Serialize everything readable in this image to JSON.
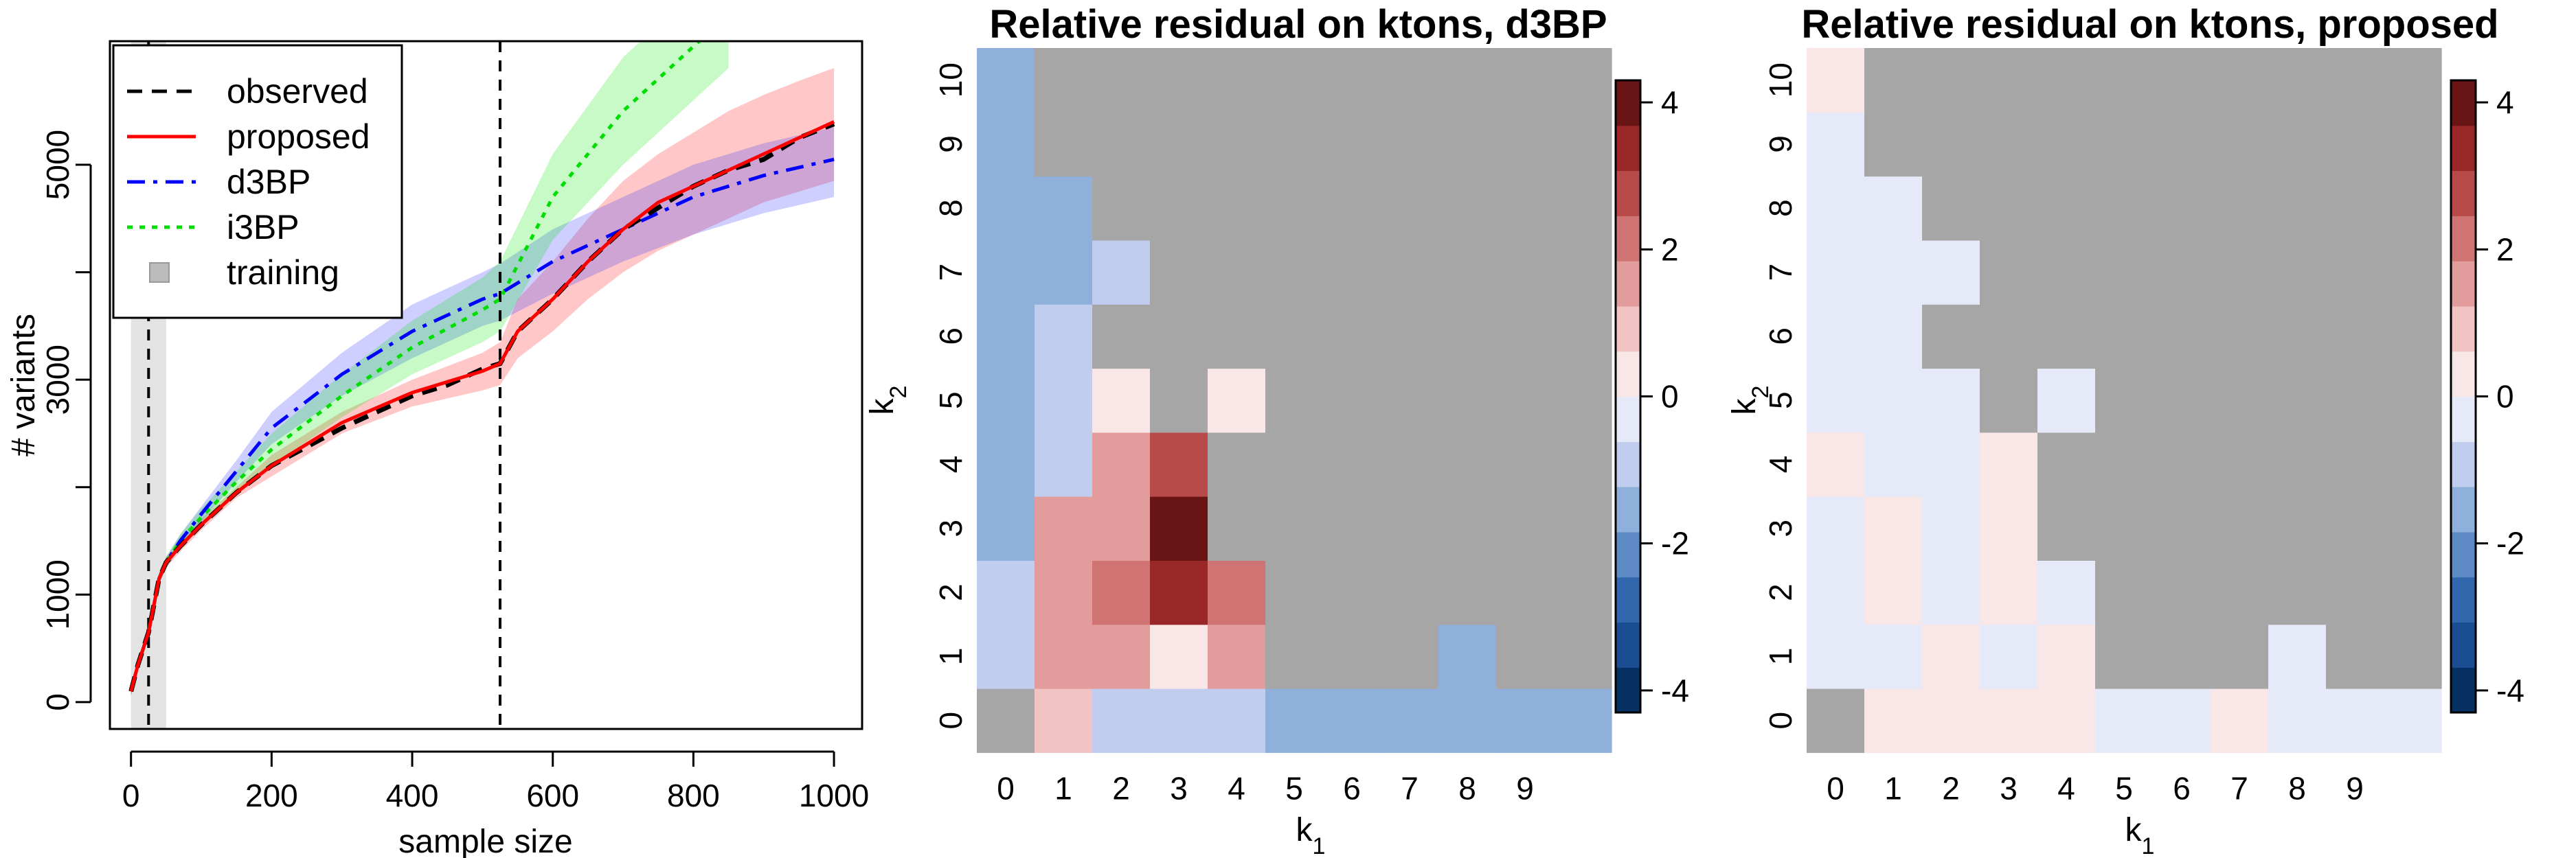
{
  "chart_data": [
    {
      "type": "line",
      "xlabel": "sample size",
      "ylabel": "# variants",
      "xlim": [
        -30,
        1040
      ],
      "ylim": [
        -250,
        6150
      ],
      "x_ticks": [
        "0",
        "200",
        "400",
        "600",
        "800",
        "1000"
      ],
      "x_tick_values": [
        0,
        200,
        400,
        600,
        800,
        1000
      ],
      "y_ticks": [
        "0",
        "1000",
        "3000",
        "5000"
      ],
      "y_tick_values": [
        0,
        1000,
        3000,
        5000
      ],
      "vertical_lines": [
        25,
        525
      ],
      "training_band": [
        0,
        50
      ],
      "legend": {
        "position": "top-left",
        "items": [
          {
            "label": "observed",
            "color": "#000000",
            "style": "dashed"
          },
          {
            "label": "proposed",
            "color": "#ff0000",
            "style": "solid"
          },
          {
            "label": "d3BP",
            "color": "#0000ff",
            "style": "dashdot"
          },
          {
            "label": "i3BP",
            "color": "#00dd00",
            "style": "dotted"
          },
          {
            "label": "training",
            "color": "#bbbbbb",
            "style": "box"
          }
        ]
      },
      "series": [
        {
          "name": "observed",
          "color": "#000000",
          "style": "dashed",
          "x": [
            0,
            10,
            25,
            40,
            50,
            70,
            100,
            150,
            200,
            300,
            400,
            450,
            500,
            525,
            550,
            600,
            650,
            700,
            750,
            800,
            850,
            900,
            950,
            1000
          ],
          "y": [
            100,
            350,
            650,
            1150,
            1300,
            1450,
            1650,
            1950,
            2200,
            2550,
            2850,
            2950,
            3100,
            3150,
            3450,
            3750,
            4100,
            4400,
            4600,
            4800,
            4950,
            5050,
            5250,
            5380
          ]
        },
        {
          "name": "proposed",
          "color": "#ff0000",
          "style": "solid",
          "x": [
            0,
            10,
            25,
            40,
            50,
            70,
            100,
            150,
            200,
            300,
            400,
            500,
            525,
            550,
            600,
            650,
            700,
            750,
            800,
            850,
            900,
            950,
            1000
          ],
          "y": [
            100,
            350,
            650,
            1150,
            1300,
            1450,
            1650,
            1950,
            2200,
            2600,
            2880,
            3080,
            3150,
            3450,
            3750,
            4100,
            4400,
            4650,
            4800,
            4950,
            5100,
            5250,
            5400
          ],
          "band_upper": [
            150,
            400,
            700,
            1200,
            1350,
            1500,
            1700,
            2000,
            2300,
            2700,
            3000,
            3250,
            3350,
            3750,
            4100,
            4500,
            4850,
            5100,
            5300,
            5500,
            5650,
            5780,
            5900
          ],
          "band_lower": [
            60,
            300,
            600,
            1100,
            1250,
            1400,
            1600,
            1900,
            2100,
            2500,
            2750,
            2900,
            2950,
            3200,
            3450,
            3750,
            4000,
            4200,
            4350,
            4500,
            4650,
            4750,
            4850
          ]
        },
        {
          "name": "d3BP",
          "color": "#0000ff",
          "style": "dashdot",
          "x": [
            0,
            10,
            25,
            40,
            50,
            70,
            100,
            150,
            200,
            300,
            400,
            500,
            525,
            600,
            700,
            800,
            900,
            1000
          ],
          "y": [
            100,
            350,
            650,
            1150,
            1300,
            1500,
            1750,
            2150,
            2550,
            3050,
            3450,
            3750,
            3800,
            4100,
            4400,
            4700,
            4900,
            5050
          ],
          "band_upper": [
            150,
            400,
            700,
            1200,
            1350,
            1560,
            1820,
            2250,
            2700,
            3250,
            3700,
            4000,
            4080,
            4400,
            4700,
            5000,
            5200,
            5350
          ],
          "band_lower": [
            60,
            300,
            600,
            1100,
            1250,
            1440,
            1680,
            2050,
            2400,
            2850,
            3200,
            3500,
            3550,
            3800,
            4100,
            4350,
            4550,
            4700
          ]
        },
        {
          "name": "i3BP",
          "color": "#00dd00",
          "style": "dotted",
          "x": [
            0,
            10,
            25,
            40,
            50,
            70,
            100,
            150,
            200,
            300,
            400,
            500,
            525,
            600,
            700,
            800,
            850
          ],
          "y": [
            100,
            350,
            650,
            1150,
            1300,
            1500,
            1720,
            2050,
            2350,
            2850,
            3300,
            3650,
            3750,
            4700,
            5500,
            6100,
            6400
          ],
          "band_upper": [
            150,
            400,
            700,
            1200,
            1350,
            1560,
            1800,
            2150,
            2500,
            3050,
            3550,
            3950,
            4100,
            5100,
            6000,
            6600,
            6900
          ],
          "band_lower": [
            60,
            300,
            600,
            1100,
            1250,
            1440,
            1650,
            1950,
            2200,
            2650,
            3050,
            3350,
            3450,
            4300,
            5000,
            5600,
            5900
          ]
        }
      ]
    },
    {
      "type": "heatmap",
      "title": "Relative residual on ktons, d3BP",
      "xlabel": "k1",
      "ylabel": "k2",
      "x_ticks": [
        "0",
        "1",
        "2",
        "3",
        "4",
        "5",
        "6",
        "7",
        "8",
        "9"
      ],
      "y_ticks": [
        "0",
        "1",
        "2",
        "3",
        "4",
        "5",
        "6",
        "7",
        "8",
        "9",
        "10"
      ],
      "ncols": 11,
      "nrows": 11,
      "colorbar_ticks": [
        "4",
        "2",
        "0",
        "-2",
        "-4"
      ],
      "colorbar_tick_values": [
        4,
        2,
        0,
        -2,
        -4
      ],
      "colorbar_range": [
        -4.3,
        4.3
      ],
      "note_values": "values[k2][k1]; null = grey (not available)",
      "values": [
        [
          null,
          0.7,
          -0.7,
          -0.7,
          -0.7,
          -1.6,
          -1.6,
          -1.6,
          -1.6,
          -1.6,
          -1.6
        ],
        [
          -0.7,
          1.3,
          1.3,
          0.5,
          1.3,
          null,
          null,
          null,
          -1.6,
          null,
          null
        ],
        [
          -0.7,
          1.3,
          2.3,
          3.3,
          2.3,
          null,
          null,
          null,
          null,
          null,
          null
        ],
        [
          -1.6,
          1.3,
          1.3,
          4.1,
          null,
          null,
          null,
          null,
          null,
          null,
          null
        ],
        [
          -1.6,
          -0.7,
          1.3,
          2.6,
          null,
          null,
          null,
          null,
          null,
          null,
          null
        ],
        [
          -1.6,
          -0.7,
          0.5,
          null,
          0.5,
          null,
          null,
          null,
          null,
          null,
          null
        ],
        [
          -1.6,
          -0.7,
          null,
          null,
          null,
          null,
          null,
          null,
          null,
          null,
          null
        ],
        [
          -1.6,
          -1.6,
          -0.7,
          null,
          null,
          null,
          null,
          null,
          null,
          null,
          null
        ],
        [
          -1.6,
          -1.6,
          null,
          null,
          null,
          null,
          null,
          null,
          null,
          null,
          null
        ],
        [
          -1.6,
          null,
          null,
          null,
          null,
          null,
          null,
          null,
          null,
          null,
          null
        ],
        [
          -1.6,
          null,
          null,
          null,
          null,
          null,
          null,
          null,
          null,
          null,
          null
        ]
      ]
    },
    {
      "type": "heatmap",
      "title": "Relative residual on ktons, proposed",
      "xlabel": "k1",
      "ylabel": "k2",
      "x_ticks": [
        "0",
        "1",
        "2",
        "3",
        "4",
        "5",
        "6",
        "7",
        "8",
        "9"
      ],
      "y_ticks": [
        "0",
        "1",
        "2",
        "3",
        "4",
        "5",
        "6",
        "7",
        "8",
        "9",
        "10"
      ],
      "ncols": 11,
      "nrows": 11,
      "colorbar_ticks": [
        "4",
        "2",
        "0",
        "-2",
        "-4"
      ],
      "colorbar_tick_values": [
        4,
        2,
        0,
        -2,
        -4
      ],
      "colorbar_range": [
        -4.3,
        4.3
      ],
      "note_values": "values[k2][k1]; null = grey (not available)",
      "values": [
        [
          null,
          0.4,
          0.4,
          0.4,
          0.4,
          -0.4,
          -0.4,
          0.4,
          -0.4,
          -0.4,
          -0.4
        ],
        [
          -0.4,
          -0.4,
          0.4,
          -0.4,
          0.4,
          null,
          null,
          null,
          -0.4,
          null,
          null
        ],
        [
          -0.4,
          0.4,
          -0.4,
          0.4,
          -0.4,
          null,
          null,
          null,
          null,
          null,
          null
        ],
        [
          -0.4,
          0.4,
          -0.4,
          0.4,
          null,
          null,
          null,
          null,
          null,
          null,
          null
        ],
        [
          0.4,
          -0.4,
          -0.4,
          0.4,
          null,
          null,
          null,
          null,
          null,
          null,
          null
        ],
        [
          -0.4,
          -0.4,
          -0.4,
          null,
          -0.4,
          null,
          null,
          null,
          null,
          null,
          null
        ],
        [
          -0.4,
          -0.4,
          null,
          null,
          null,
          null,
          null,
          null,
          null,
          null,
          null
        ],
        [
          -0.4,
          -0.4,
          -0.4,
          null,
          null,
          null,
          null,
          null,
          null,
          null,
          null
        ],
        [
          -0.4,
          -0.4,
          null,
          null,
          null,
          null,
          null,
          null,
          null,
          null,
          null
        ],
        [
          -0.4,
          null,
          null,
          null,
          null,
          null,
          null,
          null,
          null,
          null,
          null
        ],
        [
          0.4,
          null,
          null,
          null,
          null,
          null,
          null,
          null,
          null,
          null,
          null
        ]
      ]
    }
  ],
  "colors": {
    "na_cell": "#a6a6a6",
    "training_band": "#e3e3e3",
    "colorbar": [
      "#053061",
      "#1a4d92",
      "#3267ad",
      "#5d8ac4",
      "#8fb0da",
      "#c0cdef",
      "#e6e9f8",
      "#f9e6e6",
      "#f1c3c3",
      "#e39c9c",
      "#d07373",
      "#b84a4a",
      "#9a2727",
      "#6a1515"
    ]
  }
}
